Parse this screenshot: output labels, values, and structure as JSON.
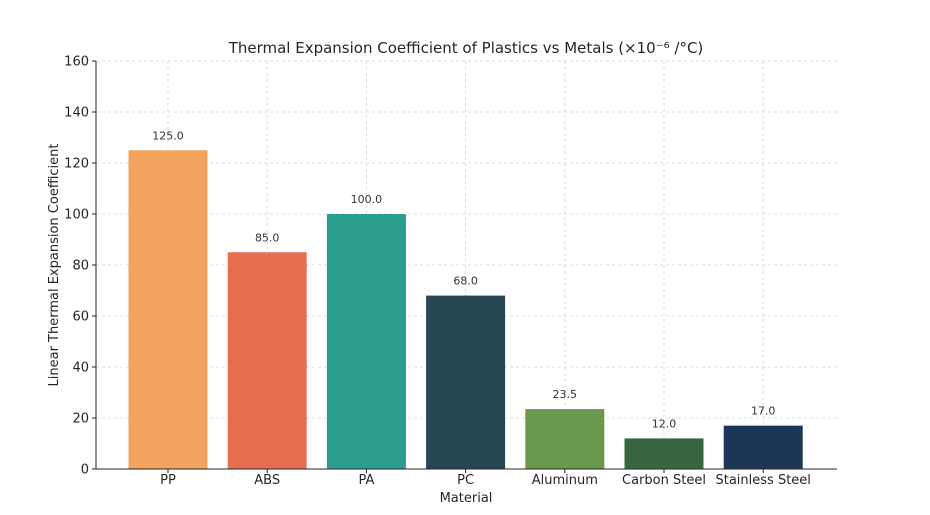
{
  "chart_data": {
    "type": "bar",
    "title": "Thermal Expansion Coefficient of Plastics vs Metals (×10⁻⁶ /°C)",
    "xlabel": "Material",
    "ylabel": "Linear Thermal Expansion Coefficient",
    "categories": [
      "PP",
      "ABS",
      "PA",
      "PC",
      "Aluminum",
      "Carbon Steel",
      "Stainless Steel"
    ],
    "values": [
      125.0,
      85.0,
      100.0,
      68.0,
      23.5,
      12.0,
      17.0
    ],
    "value_labels": [
      "125.0",
      "85.0",
      "100.0",
      "68.0",
      "23.5",
      "12.0",
      "17.0"
    ],
    "colors": [
      "#F2A35E",
      "#E76F51",
      "#2A9D8F",
      "#264653",
      "#6A994E",
      "#386641",
      "#1D3557"
    ],
    "ylim": [
      0,
      160
    ],
    "yticks": [
      0,
      20,
      40,
      60,
      80,
      100,
      120,
      140,
      160
    ],
    "grid": true,
    "legend": "none"
  }
}
